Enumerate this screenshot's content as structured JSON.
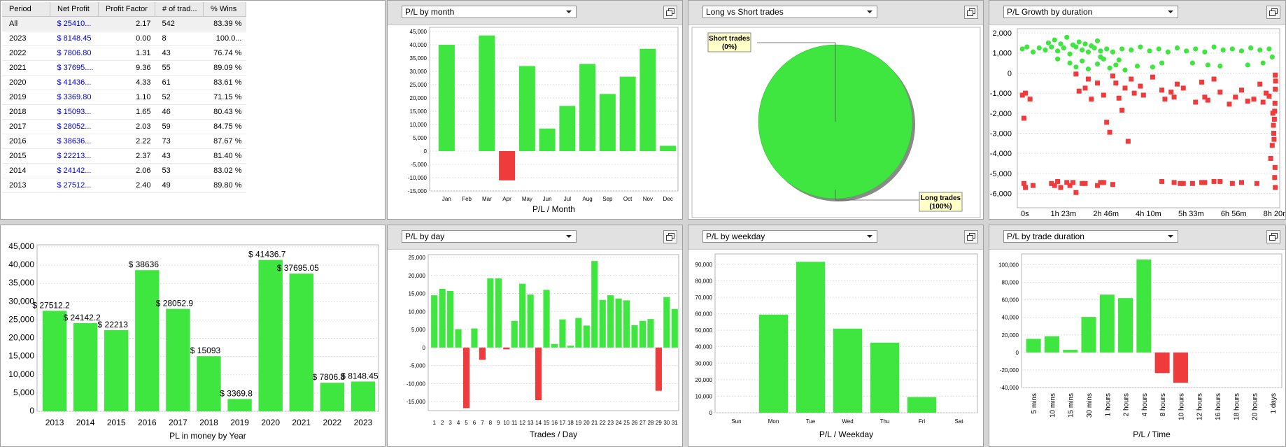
{
  "table": {
    "columns": [
      "Period",
      "Net Profit",
      "Profit Factor",
      "# of trad...",
      "% Wins"
    ],
    "rows": [
      [
        "All",
        "$ 25410...",
        "2.17",
        "542",
        "83.39 %"
      ],
      [
        "2023",
        "$ 8148.45",
        "0.00",
        "8",
        "100.0..."
      ],
      [
        "2022",
        "$ 7806.80",
        "1.31",
        "43",
        "76.74 %"
      ],
      [
        "2021",
        "$ 37695....",
        "9.36",
        "55",
        "89.09 %"
      ],
      [
        "2020",
        "$ 41436...",
        "4.33",
        "61",
        "83.61 %"
      ],
      [
        "2019",
        "$ 3369.80",
        "1.10",
        "52",
        "71.15 %"
      ],
      [
        "2018",
        "$ 15093...",
        "1.65",
        "46",
        "80.43 %"
      ],
      [
        "2017",
        "$ 28052...",
        "2.03",
        "59",
        "84.75 %"
      ],
      [
        "2016",
        "$ 38636...",
        "2.22",
        "73",
        "87.67 %"
      ],
      [
        "2015",
        "$ 22213...",
        "2.37",
        "43",
        "81.40 %"
      ],
      [
        "2014",
        "$ 24142...",
        "2.06",
        "53",
        "83.02 %"
      ],
      [
        "2013",
        "$ 27512...",
        "2.40",
        "49",
        "89.80 %"
      ]
    ]
  },
  "panels": {
    "month": {
      "dropdown": "P/L by month"
    },
    "longshort": {
      "dropdown": "Long vs Short trades",
      "short_label": "Short trades",
      "short_pct": "(0%)",
      "long_label": "Long trades",
      "long_pct": "(100%)"
    },
    "growth": {
      "dropdown": "P/L Growth by duration"
    },
    "day": {
      "dropdown": "P/L by day"
    },
    "weekday": {
      "dropdown": "P/L by weekday"
    },
    "tradedur": {
      "dropdown": "P/L by trade duration"
    }
  },
  "colors": {
    "positive": "#3fe63f",
    "negative": "#ef3b3b",
    "growth_point": "#3fe63f",
    "loss_point": "#ef3b3b"
  },
  "icons": {
    "maximize": "maximize-icon",
    "dropdown": "chevron-down-icon"
  },
  "chart_data": [
    {
      "id": "month",
      "type": "bar",
      "xlabel": "P/L / Month",
      "categories": [
        "Jan",
        "Feb",
        "Mar",
        "Apr",
        "May",
        "Jun",
        "Jul",
        "Aug",
        "Sep",
        "Oct",
        "Nov",
        "Dec"
      ],
      "values": [
        40000,
        0,
        43500,
        -11000,
        32000,
        8500,
        17000,
        32800,
        21500,
        28000,
        38500,
        2000
      ],
      "ylim": [
        -15000,
        45000
      ],
      "yticks": [
        -15000,
        -10000,
        -5000,
        0,
        5000,
        10000,
        15000,
        20000,
        25000,
        30000,
        35000,
        40000,
        45000
      ],
      "ytick_labels": [
        "-15,000",
        "-10,000",
        "-5,000",
        "0",
        "5,000",
        "10,000",
        "15,000",
        "20,000",
        "25,000",
        "30,000",
        "35,000",
        "40,000",
        "45,000"
      ]
    },
    {
      "id": "longshort",
      "type": "pie",
      "slices": [
        {
          "label": "Long trades",
          "value": 100
        },
        {
          "label": "Short trades",
          "value": 0
        }
      ]
    },
    {
      "id": "growth",
      "type": "scatter",
      "xlabels": [
        "0s",
        "1h 23m",
        "2h 46m",
        "4h 10m",
        "5h 33m",
        "6h 56m",
        "8h 20m"
      ],
      "ylim": [
        -6500,
        2000
      ],
      "yticks": [
        -6000,
        -5000,
        -4000,
        -3000,
        -2000,
        -1000,
        0,
        1000,
        2000
      ],
      "ytick_labels": [
        "-6,000",
        "-5,000",
        "-4,000",
        "-3,000",
        "-2,000",
        "-1,000",
        "0",
        "1,000",
        "2,000"
      ],
      "series": [
        {
          "values": [
            [
              0.05,
              1200
            ],
            [
              0.2,
              1300
            ],
            [
              0.4,
              1050
            ],
            [
              0.6,
              1250
            ],
            [
              0.8,
              1150
            ],
            [
              1.0,
              1300
            ],
            [
              1.2,
              1100
            ],
            [
              1.4,
              1250
            ],
            [
              1.6,
              950
            ],
            [
              1.8,
              1300
            ],
            [
              2.0,
              1150
            ],
            [
              2.2,
              1050
            ],
            [
              2.4,
              1250
            ],
            [
              2.6,
              1100
            ],
            [
              2.8,
              1200
            ],
            [
              3.0,
              1050
            ],
            [
              3.3,
              1200
            ],
            [
              3.6,
              1150
            ],
            [
              3.9,
              1300
            ],
            [
              4.2,
              1100
            ],
            [
              4.5,
              1200
            ],
            [
              4.8,
              1050
            ],
            [
              5.1,
              1250
            ],
            [
              5.4,
              1100
            ],
            [
              5.7,
              1200
            ],
            [
              6.0,
              1050
            ],
            [
              6.3,
              1300
            ],
            [
              6.6,
              1150
            ],
            [
              6.9,
              1200
            ],
            [
              7.2,
              1100
            ],
            [
              7.5,
              1250
            ],
            [
              7.8,
              1150
            ],
            [
              8.1,
              1200
            ],
            [
              0.9,
              1500
            ],
            [
              1.1,
              1650
            ],
            [
              1.3,
              1450
            ],
            [
              1.5,
              1780
            ],
            [
              1.7,
              1400
            ],
            [
              1.9,
              1550
            ],
            [
              2.1,
              1450
            ],
            [
              2.3,
              1350
            ],
            [
              2.5,
              1600
            ],
            [
              1.6,
              500
            ],
            [
              1.8,
              300
            ],
            [
              2.0,
              600
            ],
            [
              2.2,
              200
            ],
            [
              2.5,
              450
            ],
            [
              2.7,
              700
            ],
            [
              2.9,
              250
            ],
            [
              3.1,
              400
            ],
            [
              3.4,
              150
            ],
            [
              3.8,
              350
            ],
            [
              4.3,
              300
            ],
            [
              5.6,
              500
            ],
            [
              6.5,
              350
            ],
            [
              7.4,
              400
            ],
            [
              7.9,
              500
            ],
            [
              8.2,
              800
            ],
            [
              1.2,
              700
            ],
            [
              2.6,
              800
            ],
            [
              3.2,
              650
            ],
            [
              4.6,
              500
            ],
            [
              6.1,
              400
            ]
          ]
        },
        {
          "values": [
            [
              0.05,
              -1100
            ],
            [
              0.1,
              -2250
            ],
            [
              0.15,
              -1000
            ],
            [
              0.3,
              -1300
            ],
            [
              0.1,
              -5500
            ],
            [
              0.15,
              -5700
            ],
            [
              0.4,
              -5600
            ],
            [
              1.0,
              -5500
            ],
            [
              1.1,
              -5600
            ],
            [
              1.2,
              -5400
            ],
            [
              1.3,
              -5700
            ],
            [
              1.5,
              -5450
            ],
            [
              1.6,
              -5600
            ],
            [
              1.7,
              -5450
            ],
            [
              1.8,
              -5950
            ],
            [
              2.0,
              -5500
            ],
            [
              2.1,
              -5500
            ],
            [
              2.5,
              -5600
            ],
            [
              2.6,
              -5450
            ],
            [
              2.7,
              -5450
            ],
            [
              3.0,
              -5550
            ],
            [
              4.6,
              -5400
            ],
            [
              5.0,
              -5450
            ],
            [
              5.2,
              -5500
            ],
            [
              5.3,
              -5500
            ],
            [
              5.6,
              -5500
            ],
            [
              5.9,
              -5450
            ],
            [
              6.0,
              -5450
            ],
            [
              6.3,
              -5400
            ],
            [
              6.5,
              -5400
            ],
            [
              6.9,
              -5500
            ],
            [
              7.2,
              -5450
            ],
            [
              7.7,
              -5500
            ],
            [
              1.8,
              -50
            ],
            [
              1.9,
              -900
            ],
            [
              2.1,
              -750
            ],
            [
              2.2,
              -300
            ],
            [
              2.3,
              -1300
            ],
            [
              2.5,
              -500
            ],
            [
              2.8,
              -2450
            ],
            [
              2.9,
              -2950
            ],
            [
              2.7,
              -1100
            ],
            [
              3.0,
              -150
            ],
            [
              3.1,
              -500
            ],
            [
              3.2,
              -1250
            ],
            [
              3.3,
              -1850
            ],
            [
              3.4,
              -750
            ],
            [
              3.5,
              -3400
            ],
            [
              3.6,
              -300
            ],
            [
              3.7,
              -1000
            ],
            [
              3.9,
              -650
            ],
            [
              4.0,
              -1100
            ],
            [
              4.3,
              -200
            ],
            [
              4.6,
              -850
            ],
            [
              4.7,
              -1300
            ],
            [
              4.9,
              -950
            ],
            [
              5.0,
              -1200
            ],
            [
              5.1,
              -550
            ],
            [
              5.3,
              -750
            ],
            [
              5.7,
              -1450
            ],
            [
              5.9,
              -450
            ],
            [
              6.0,
              -1200
            ],
            [
              6.1,
              -1350
            ],
            [
              6.3,
              -300
            ],
            [
              6.5,
              -950
            ],
            [
              6.8,
              -1550
            ],
            [
              7.0,
              -1200
            ],
            [
              7.2,
              -850
            ],
            [
              7.4,
              -1400
            ],
            [
              7.6,
              -1300
            ],
            [
              7.8,
              -550
            ],
            [
              7.9,
              -1450
            ],
            [
              8.0,
              -1000
            ],
            [
              8.1,
              -1150
            ],
            [
              8.15,
              -4250
            ],
            [
              8.2,
              -3600
            ],
            [
              8.22,
              -2000
            ],
            [
              8.24,
              -2600
            ],
            [
              8.25,
              -3000
            ],
            [
              8.26,
              -3300
            ],
            [
              8.27,
              -2300
            ],
            [
              8.28,
              -1900
            ],
            [
              8.29,
              -1500
            ],
            [
              8.3,
              -800
            ],
            [
              8.31,
              -400
            ],
            [
              8.3,
              -100
            ],
            [
              8.29,
              -4700
            ],
            [
              8.28,
              -5200
            ],
            [
              8.3,
              -5700
            ]
          ]
        }
      ]
    },
    {
      "id": "year",
      "type": "bar",
      "xlabel": "PL in money by Year",
      "categories": [
        "2013",
        "2014",
        "2015",
        "2016",
        "2017",
        "2018",
        "2019",
        "2020",
        "2021",
        "2022",
        "2023"
      ],
      "values": [
        27512.2,
        24142.2,
        22213,
        38636,
        28052.9,
        15093,
        3369.8,
        41436.7,
        37695.05,
        7806.8,
        8148.45
      ],
      "data_labels": [
        "$ 27512.2",
        "$ 24142.2",
        "$ 22213",
        "$ 38636",
        "$ 28052.9",
        "$ 15093",
        "$ 3369.8",
        "$ 41436.7",
        "$ 37695.05",
        "$ 7806.8",
        "$ 8148.45"
      ],
      "ylim": [
        0,
        45000
      ],
      "yticks": [
        0,
        5000,
        10000,
        15000,
        20000,
        25000,
        30000,
        35000,
        40000,
        45000
      ],
      "ytick_labels": [
        "0",
        "5,000",
        "10,000",
        "15,000",
        "20,000",
        "25,000",
        "30,000",
        "35,000",
        "40,000",
        "45,000"
      ]
    },
    {
      "id": "day",
      "type": "bar",
      "xlabel": "Trades / Day",
      "categories": [
        "1",
        "2",
        "3",
        "4",
        "5",
        "6",
        "7",
        "8",
        "9",
        "10",
        "11",
        "12",
        "13",
        "14",
        "15",
        "16",
        "17",
        "18",
        "19",
        "20",
        "21",
        "22",
        "23",
        "24",
        "25",
        "26",
        "27",
        "28",
        "29",
        "30",
        "31"
      ],
      "values": [
        14500,
        16300,
        15700,
        5100,
        -16800,
        5300,
        -3400,
        19200,
        19200,
        -500,
        7400,
        17700,
        14700,
        -14600,
        16000,
        1000,
        7800,
        500,
        8200,
        6100,
        24000,
        13200,
        14500,
        13600,
        13100,
        6200,
        7400,
        7900,
        -12000,
        14000,
        10700
      ],
      "ylim": [
        -17500,
        25000
      ],
      "yticks": [
        -15000,
        -10000,
        -5000,
        0,
        5000,
        10000,
        15000,
        20000,
        25000
      ],
      "ytick_labels": [
        "-15,000",
        "-10,000",
        "-5,000",
        "0",
        "5,000",
        "10,000",
        "15,000",
        "20,000",
        "25,000"
      ]
    },
    {
      "id": "weekday",
      "type": "bar",
      "xlabel": "P/L / Weekday",
      "categories": [
        "Sun",
        "Mon",
        "Tue",
        "Wed",
        "Thu",
        "Fri",
        "Sat"
      ],
      "values": [
        0,
        59500,
        91500,
        51000,
        42500,
        9500,
        0
      ],
      "ylim": [
        0,
        95000
      ],
      "yticks": [
        0,
        10000,
        20000,
        30000,
        40000,
        50000,
        60000,
        70000,
        80000,
        90000
      ],
      "ytick_labels": [
        "0",
        "10,000",
        "20,000",
        "30,000",
        "40,000",
        "50,000",
        "60,000",
        "70,000",
        "80,000",
        "90,000"
      ]
    },
    {
      "id": "tradedur",
      "type": "bar",
      "xlabel": "P/L / Time",
      "categories": [
        "5 mins",
        "10 mins",
        "15 mins",
        "30 mins",
        "1 hours",
        "2 hours",
        "4 hours",
        "8 hours",
        "10 hours",
        "12 hours",
        "16 hours",
        "18 hours",
        "20 hours",
        "1 days"
      ],
      "values": [
        15500,
        18500,
        3000,
        40500,
        66000,
        62000,
        106000,
        -23500,
        -34500,
        0,
        0,
        0,
        0,
        0
      ],
      "ylim": [
        -40000,
        110000
      ],
      "yticks": [
        -40000,
        -20000,
        0,
        20000,
        40000,
        60000,
        80000,
        100000
      ],
      "ytick_labels": [
        "-40,000",
        "-20,000",
        "0",
        "20,000",
        "40,000",
        "60,000",
        "80,000",
        "100,000"
      ]
    }
  ]
}
